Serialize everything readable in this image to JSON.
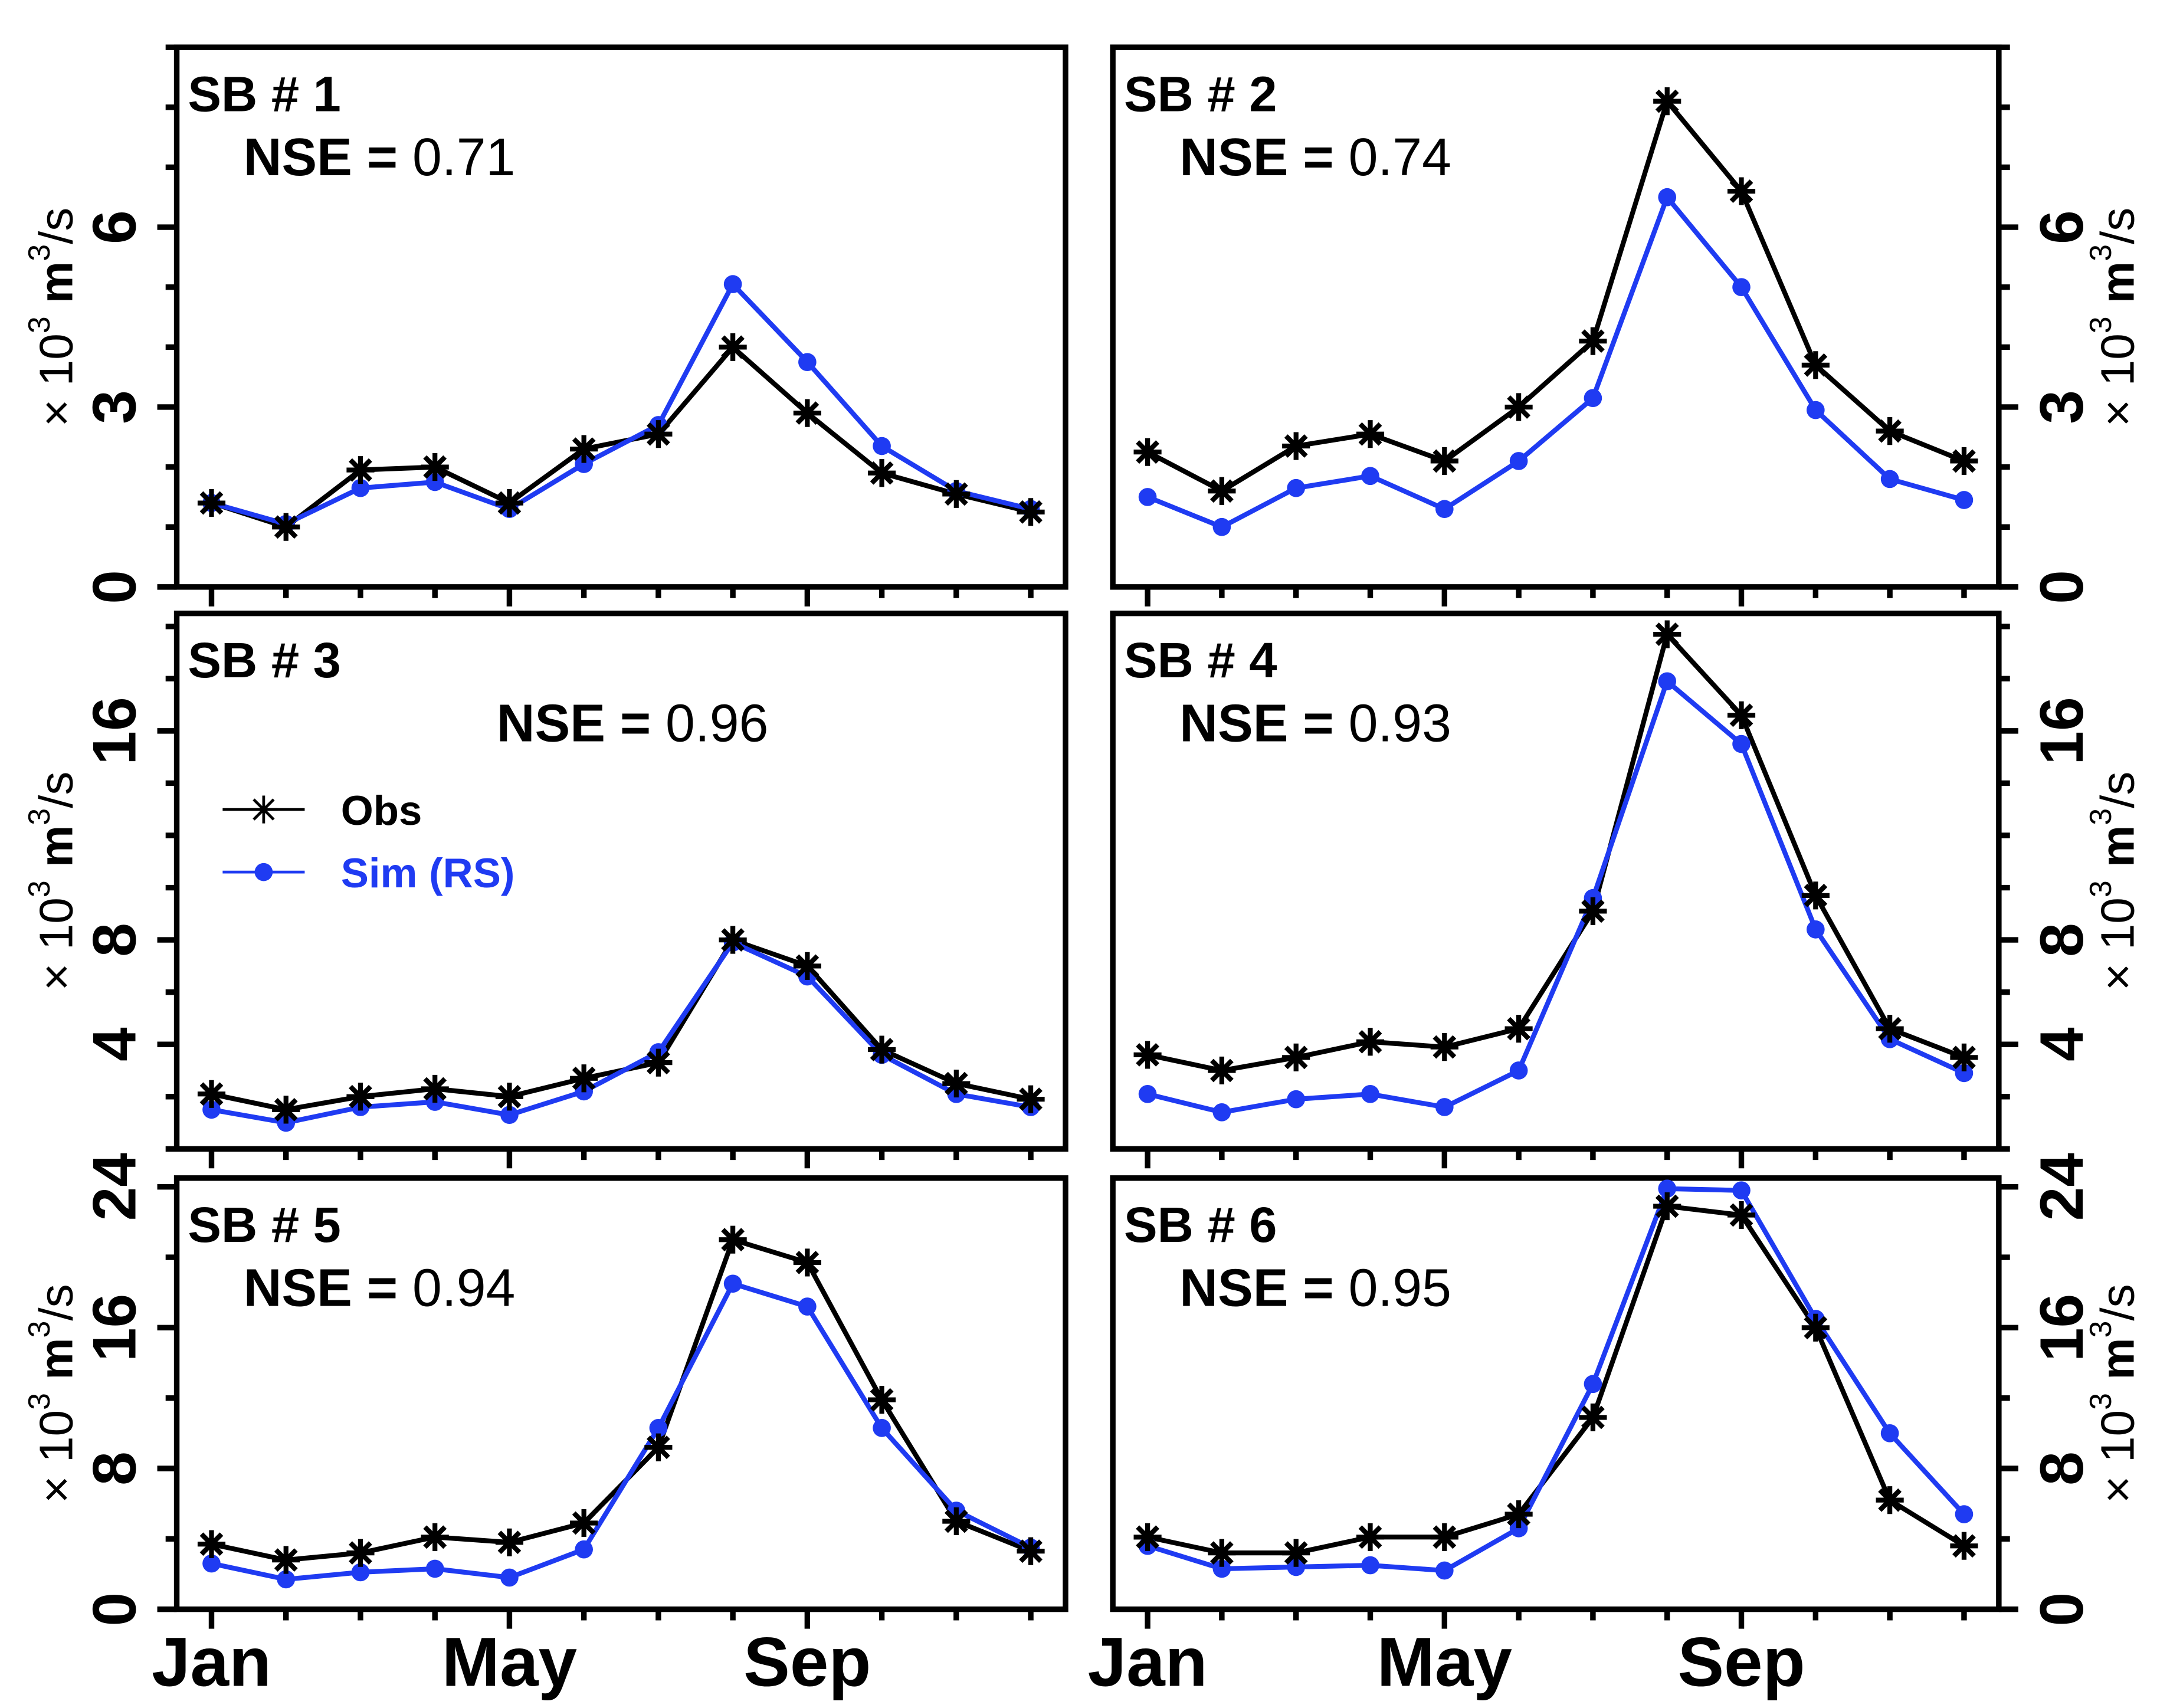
{
  "chart_data": {
    "type": "line",
    "layout": "3x2 grid",
    "ylabel": {
      "prefix": "× 10",
      "prefix_sup": "3",
      "unit": " m",
      "unit_sup": "3",
      "suffix": "/s"
    },
    "x_months": [
      1,
      2,
      3,
      4,
      5,
      6,
      7,
      8,
      9,
      10,
      11,
      12
    ],
    "xticks": [
      {
        "month": 1,
        "label": "Jan"
      },
      {
        "month": 5,
        "label": "May"
      },
      {
        "month": 9,
        "label": "Sep"
      }
    ],
    "legend": {
      "placement": "inside SB # 3, left",
      "entries": [
        {
          "key": "obs",
          "label": "Obs",
          "color": "#000000",
          "marker": "asterisk"
        },
        {
          "key": "sim",
          "label": "Sim (RS)",
          "color": "#1f3bf2",
          "marker": "dot"
        }
      ]
    },
    "colors": {
      "obs": "#000000",
      "sim": "#1f3bf2"
    },
    "panels": [
      {
        "id": "sb1",
        "title": "SB # 1",
        "nse_label": "NSE = ",
        "nse_value": "0.71",
        "ylim": [
          0,
          9
        ],
        "yticks": [
          0,
          3,
          6
        ],
        "minor_step": 1,
        "series": [
          {
            "key": "obs",
            "values": [
              1.4,
              1.0,
              1.95,
              2.0,
              1.4,
              2.3,
              2.55,
              4.0,
              2.9,
              1.9,
              1.55,
              1.25
            ]
          },
          {
            "key": "sim",
            "values": [
              1.4,
              1.05,
              1.65,
              1.75,
              1.3,
              2.05,
              2.7,
              5.05,
              3.75,
              2.35,
              1.6,
              1.3
            ]
          }
        ]
      },
      {
        "id": "sb2",
        "title": "SB # 2",
        "nse_label": "NSE = ",
        "nse_value": "0.74",
        "ylim": [
          0,
          9
        ],
        "yticks": [
          0,
          3,
          6
        ],
        "minor_step": 1,
        "series": [
          {
            "key": "obs",
            "values": [
              2.25,
              1.6,
              2.35,
              2.55,
              2.1,
              3.0,
              4.1,
              8.1,
              6.6,
              3.7,
              2.6,
              2.1
            ]
          },
          {
            "key": "sim",
            "values": [
              1.5,
              1.0,
              1.65,
              1.85,
              1.3,
              2.1,
              3.15,
              6.5,
              5.0,
              2.95,
              1.8,
              1.45
            ]
          }
        ]
      },
      {
        "id": "sb3",
        "title": "SB # 3",
        "nse_label": "NSE = ",
        "nse_value": "0.96",
        "show_legend": true,
        "ylim": [
          0,
          20.5
        ],
        "yticks": [
          4,
          8,
          16
        ],
        "minor_step": 2,
        "series": [
          {
            "key": "obs",
            "values": [
              2.1,
              1.5,
              2.0,
              2.3,
              2.0,
              2.7,
              3.3,
              8.0,
              7.0,
              3.8,
              2.5,
              1.9
            ]
          },
          {
            "key": "sim",
            "values": [
              1.5,
              1.0,
              1.6,
              1.8,
              1.3,
              2.2,
              3.7,
              7.9,
              6.6,
              3.6,
              2.1,
              1.6
            ]
          }
        ]
      },
      {
        "id": "sb4",
        "title": "SB # 4",
        "nse_label": "NSE = ",
        "nse_value": "0.93",
        "ylim": [
          0,
          20.5
        ],
        "yticks": [
          4,
          8,
          16
        ],
        "minor_step": 2,
        "series": [
          {
            "key": "obs",
            "values": [
              3.6,
              3.0,
              3.5,
              4.1,
              3.9,
              4.6,
              9.1,
              19.7,
              16.6,
              9.7,
              4.6,
              3.5
            ]
          },
          {
            "key": "sim",
            "values": [
              2.1,
              1.4,
              1.9,
              2.1,
              1.6,
              3.0,
              9.6,
              17.9,
              15.5,
              8.4,
              4.2,
              2.9
            ]
          }
        ]
      },
      {
        "id": "sb5",
        "title": "SB # 5",
        "nse_label": "NSE = ",
        "nse_value": "0.94",
        "ylim": [
          0,
          24.5
        ],
        "yticks": [
          0,
          8,
          16,
          24
        ],
        "minor_step": 4,
        "series": [
          {
            "key": "obs",
            "values": [
              3.7,
              2.8,
              3.2,
              4.1,
              3.8,
              4.9,
              9.2,
              21.0,
              19.7,
              11.9,
              5.0,
              3.3
            ]
          },
          {
            "key": "sim",
            "values": [
              2.6,
              1.7,
              2.1,
              2.3,
              1.8,
              3.4,
              10.3,
              18.5,
              17.2,
              10.3,
              5.6,
              3.5
            ]
          }
        ]
      },
      {
        "id": "sb6",
        "title": "SB # 6",
        "nse_label": "NSE = ",
        "nse_value": "0.95",
        "ylim": [
          0,
          24.5
        ],
        "yticks": [
          0,
          8,
          16,
          24
        ],
        "minor_step": 4,
        "series": [
          {
            "key": "obs",
            "values": [
              4.1,
              3.2,
              3.2,
              4.1,
              4.1,
              5.4,
              10.9,
              22.9,
              22.4,
              16.0,
              6.2,
              3.6
            ]
          },
          {
            "key": "sim",
            "values": [
              3.6,
              2.3,
              2.4,
              2.5,
              2.2,
              4.6,
              12.8,
              23.9,
              23.8,
              16.5,
              10.0,
              5.4
            ]
          }
        ]
      }
    ]
  }
}
